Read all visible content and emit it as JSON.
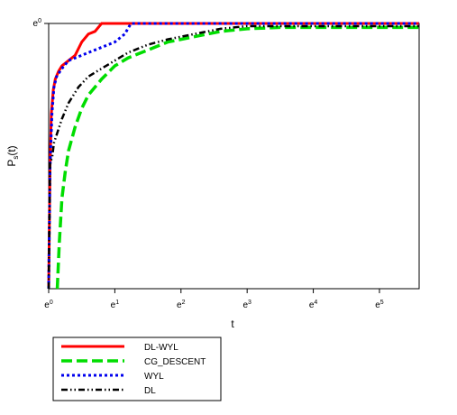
{
  "chart_data": {
    "type": "line",
    "title": "",
    "xlabel": "t",
    "ylabel": "P_s(t)",
    "x_scale": "log",
    "xlim": [
      0,
      5.6
    ],
    "ylim": [
      0,
      1
    ],
    "x_ticks": [
      {
        "value": 0,
        "base": "e",
        "exp": "0"
      },
      {
        "value": 1,
        "base": "e",
        "exp": "1"
      },
      {
        "value": 2,
        "base": "e",
        "exp": "2"
      },
      {
        "value": 3,
        "base": "e",
        "exp": "3"
      },
      {
        "value": 4,
        "base": "e",
        "exp": "4"
      },
      {
        "value": 5,
        "base": "e",
        "exp": "5"
      }
    ],
    "y_ticks": [
      {
        "value": 1,
        "base": "e",
        "exp": "0"
      }
    ],
    "grid": false,
    "legend_position": "bottom-left-outside",
    "series": [
      {
        "name": "DL-WYL",
        "color": "#ff0000",
        "style": "solid",
        "x": [
          0,
          0.02,
          0.04,
          0.07,
          0.1,
          0.15,
          0.2,
          0.3,
          0.4,
          0.5,
          0.6,
          0.7,
          0.8,
          1.1,
          5.6
        ],
        "y": [
          0,
          0.46,
          0.66,
          0.75,
          0.79,
          0.82,
          0.84,
          0.86,
          0.88,
          0.93,
          0.96,
          0.97,
          1.0,
          1.0,
          1.0
        ]
      },
      {
        "name": "CG_DESCENT",
        "color": "#00dd00",
        "style": "dashed",
        "x": [
          0.13,
          0.16,
          0.2,
          0.25,
          0.3,
          0.4,
          0.5,
          0.6,
          0.8,
          1.0,
          1.2,
          1.5,
          1.8,
          2.2,
          2.6,
          3.0,
          3.5,
          4.0,
          5.6
        ],
        "y": [
          0,
          0.17,
          0.34,
          0.44,
          0.52,
          0.61,
          0.68,
          0.73,
          0.79,
          0.84,
          0.87,
          0.9,
          0.93,
          0.95,
          0.97,
          0.98,
          0.985,
          0.985,
          0.985
        ]
      },
      {
        "name": "WYL",
        "color": "#0000ee",
        "style": "dotted",
        "x": [
          0,
          0.02,
          0.05,
          0.08,
          0.12,
          0.2,
          0.3,
          0.5,
          0.8,
          1.0,
          1.15,
          1.22,
          1.25,
          5.6
        ],
        "y": [
          0,
          0.45,
          0.66,
          0.76,
          0.8,
          0.83,
          0.86,
          0.88,
          0.91,
          0.93,
          0.96,
          0.99,
          1.0,
          1.0
        ]
      },
      {
        "name": "DL",
        "color": "#000000",
        "style": "dashdotdot",
        "x": [
          0,
          0.02,
          0.05,
          0.08,
          0.12,
          0.2,
          0.3,
          0.45,
          0.6,
          0.8,
          1.0,
          1.2,
          1.5,
          1.8,
          2.2,
          2.6,
          3.0,
          3.5,
          4.0,
          5.6
        ],
        "y": [
          0,
          0.48,
          0.49,
          0.55,
          0.58,
          0.64,
          0.7,
          0.76,
          0.8,
          0.83,
          0.86,
          0.89,
          0.92,
          0.94,
          0.96,
          0.98,
          0.99,
          0.99,
          0.99,
          0.99
        ]
      }
    ]
  }
}
